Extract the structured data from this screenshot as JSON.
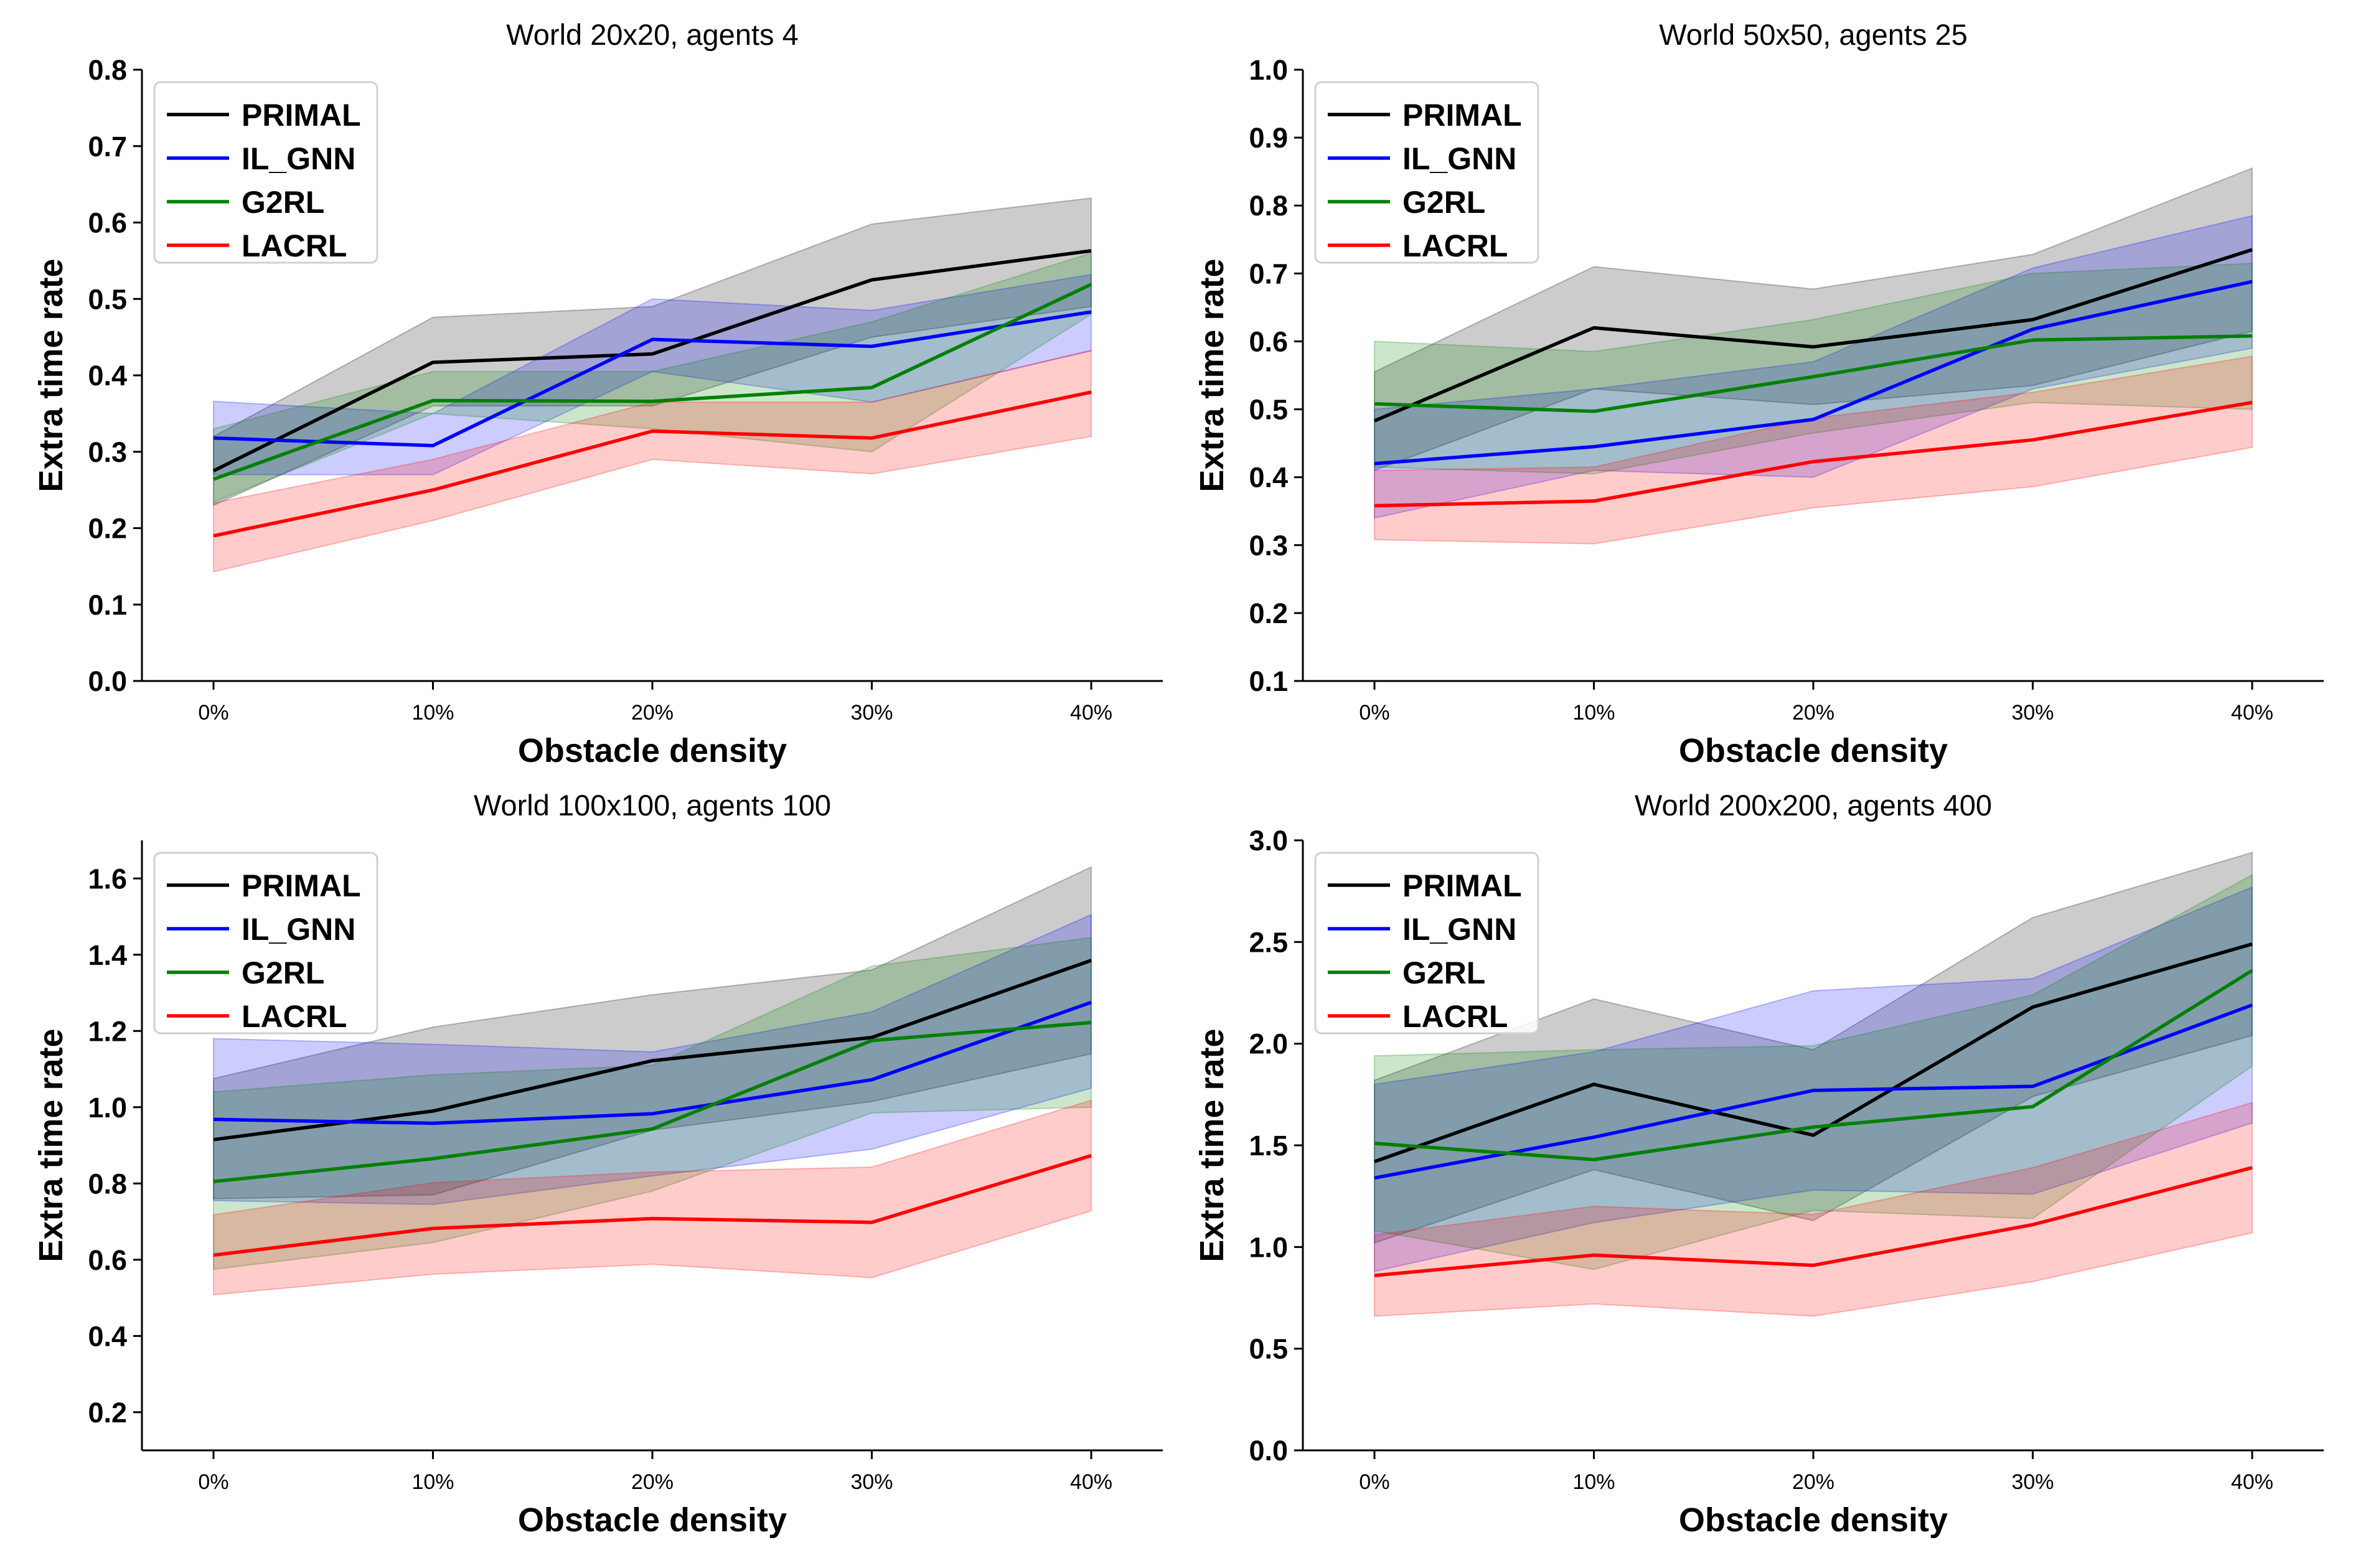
{
  "chart_data": [
    {
      "type": "line",
      "title": "World 20x20, agents 4",
      "xlabel": "Obstacle density",
      "ylabel": "Extra time rate",
      "categories": [
        "0%",
        "10%",
        "20%",
        "30%",
        "40%"
      ],
      "ylim": [
        0.0,
        0.8
      ],
      "yticks": [
        "0.0",
        "0.1",
        "0.2",
        "0.3",
        "0.4",
        "0.5",
        "0.6",
        "0.7",
        "0.8"
      ],
      "legend": "top-left",
      "series": [
        {
          "name": "PRIMAL",
          "color": "#000000",
          "values": [
            0.275,
            0.417,
            0.428,
            0.525,
            0.563
          ],
          "lower": [
            0.23,
            0.36,
            0.36,
            0.45,
            0.49
          ],
          "upper": [
            0.32,
            0.476,
            0.49,
            0.598,
            0.632
          ]
        },
        {
          "name": "IL_GNN",
          "color": "#0000ff",
          "values": [
            0.318,
            0.308,
            0.447,
            0.438,
            0.483
          ],
          "lower": [
            0.27,
            0.27,
            0.405,
            0.365,
            0.432
          ],
          "upper": [
            0.366,
            0.35,
            0.5,
            0.485,
            0.532
          ]
        },
        {
          "name": "G2RL",
          "color": "#008000",
          "values": [
            0.264,
            0.367,
            0.366,
            0.384,
            0.519
          ],
          "lower": [
            0.234,
            0.35,
            0.33,
            0.3,
            0.48
          ],
          "upper": [
            0.33,
            0.405,
            0.405,
            0.47,
            0.56
          ]
        },
        {
          "name": "LACRL",
          "color": "#ff0000",
          "values": [
            0.19,
            0.25,
            0.327,
            0.318,
            0.378
          ],
          "lower": [
            0.143,
            0.21,
            0.29,
            0.271,
            0.32
          ],
          "upper": [
            0.233,
            0.29,
            0.365,
            0.365,
            0.433
          ]
        }
      ]
    },
    {
      "type": "line",
      "title": "World 50x50, agents 25",
      "xlabel": "Obstacle density",
      "ylabel": "Extra time rate",
      "categories": [
        "0%",
        "10%",
        "20%",
        "30%",
        "40%"
      ],
      "ylim": [
        0.1,
        1.0
      ],
      "yticks": [
        "0.1",
        "0.2",
        "0.3",
        "0.4",
        "0.5",
        "0.6",
        "0.7",
        "0.8",
        "0.9",
        "1.0"
      ],
      "legend": "top-left",
      "series": [
        {
          "name": "PRIMAL",
          "color": "#000000",
          "values": [
            0.483,
            0.62,
            0.592,
            0.632,
            0.735
          ],
          "lower": [
            0.41,
            0.53,
            0.507,
            0.535,
            0.615
          ],
          "upper": [
            0.555,
            0.71,
            0.677,
            0.728,
            0.855
          ]
        },
        {
          "name": "IL_GNN",
          "color": "#0000ff",
          "values": [
            0.42,
            0.445,
            0.485,
            0.618,
            0.688
          ],
          "lower": [
            0.34,
            0.41,
            0.4,
            0.53,
            0.59
          ],
          "upper": [
            0.5,
            0.53,
            0.57,
            0.708,
            0.785
          ]
        },
        {
          "name": "G2RL",
          "color": "#008000",
          "values": [
            0.508,
            0.497,
            0.548,
            0.602,
            0.608
          ],
          "lower": [
            0.415,
            0.405,
            0.465,
            0.51,
            0.5
          ],
          "upper": [
            0.6,
            0.585,
            0.632,
            0.7,
            0.715
          ]
        },
        {
          "name": "LACRL",
          "color": "#ff0000",
          "values": [
            0.358,
            0.365,
            0.423,
            0.455,
            0.51
          ],
          "lower": [
            0.308,
            0.302,
            0.355,
            0.386,
            0.444
          ],
          "upper": [
            0.41,
            0.415,
            0.487,
            0.525,
            0.578
          ]
        }
      ]
    },
    {
      "type": "line",
      "title": "World 100x100, agents 100",
      "xlabel": "Obstacle density",
      "ylabel": "Extra time rate",
      "categories": [
        "0%",
        "10%",
        "20%",
        "30%",
        "40%"
      ],
      "ylim": [
        0.1,
        1.7
      ],
      "yticks": [
        "0.2",
        "0.4",
        "0.6",
        "0.8",
        "1.0",
        "1.2",
        "1.4",
        "1.6"
      ],
      "legend": "top-left",
      "series": [
        {
          "name": "PRIMAL",
          "color": "#000000",
          "values": [
            0.915,
            0.99,
            1.122,
            1.183,
            1.385
          ],
          "lower": [
            0.76,
            0.77,
            0.94,
            1.015,
            1.14
          ],
          "upper": [
            1.075,
            1.21,
            1.295,
            1.36,
            1.63
          ]
        },
        {
          "name": "IL_GNN",
          "color": "#0000ff",
          "values": [
            0.968,
            0.958,
            0.983,
            1.072,
            1.275
          ],
          "lower": [
            0.755,
            0.745,
            0.82,
            0.89,
            1.05
          ],
          "upper": [
            1.18,
            1.165,
            1.145,
            1.25,
            1.505
          ]
        },
        {
          "name": "G2RL",
          "color": "#008000",
          "values": [
            0.805,
            0.865,
            0.943,
            1.175,
            1.222
          ],
          "lower": [
            0.575,
            0.645,
            0.78,
            0.985,
            1.0
          ],
          "upper": [
            1.04,
            1.085,
            1.11,
            1.37,
            1.445
          ]
        },
        {
          "name": "LACRL",
          "color": "#ff0000",
          "values": [
            0.612,
            0.682,
            0.708,
            0.698,
            0.873
          ],
          "lower": [
            0.508,
            0.562,
            0.588,
            0.553,
            0.728
          ],
          "upper": [
            0.718,
            0.802,
            0.83,
            0.843,
            1.018
          ]
        }
      ]
    },
    {
      "type": "line",
      "title": "World 200x200, agents 400",
      "xlabel": "Obstacle density",
      "ylabel": "Extra time rate",
      "categories": [
        "0%",
        "10%",
        "20%",
        "30%",
        "40%"
      ],
      "ylim": [
        0.0,
        3.0
      ],
      "yticks": [
        "0.0",
        "0.5",
        "1.0",
        "1.5",
        "2.0",
        "2.5",
        "3.0"
      ],
      "legend": "top-left",
      "series": [
        {
          "name": "PRIMAL",
          "color": "#000000",
          "values": [
            1.42,
            1.8,
            1.55,
            2.18,
            2.49
          ],
          "lower": [
            1.02,
            1.38,
            1.13,
            1.74,
            2.04
          ],
          "upper": [
            1.82,
            2.22,
            1.97,
            2.62,
            2.94
          ]
        },
        {
          "name": "IL_GNN",
          "color": "#0000ff",
          "values": [
            1.34,
            1.54,
            1.77,
            1.79,
            2.19
          ],
          "lower": [
            0.88,
            1.12,
            1.28,
            1.26,
            1.61
          ],
          "upper": [
            1.8,
            1.96,
            2.26,
            2.32,
            2.77
          ]
        },
        {
          "name": "G2RL",
          "color": "#008000",
          "values": [
            1.51,
            1.43,
            1.59,
            1.69,
            2.36
          ],
          "lower": [
            1.08,
            0.89,
            1.18,
            1.14,
            1.89
          ],
          "upper": [
            1.94,
            1.97,
            1.99,
            2.24,
            2.83
          ]
        },
        {
          "name": "LACRL",
          "color": "#ff0000",
          "values": [
            0.86,
            0.96,
            0.91,
            1.11,
            1.39
          ],
          "lower": [
            0.66,
            0.72,
            0.66,
            0.83,
            1.07
          ],
          "upper": [
            1.06,
            1.2,
            1.16,
            1.39,
            1.71
          ]
        }
      ]
    }
  ]
}
